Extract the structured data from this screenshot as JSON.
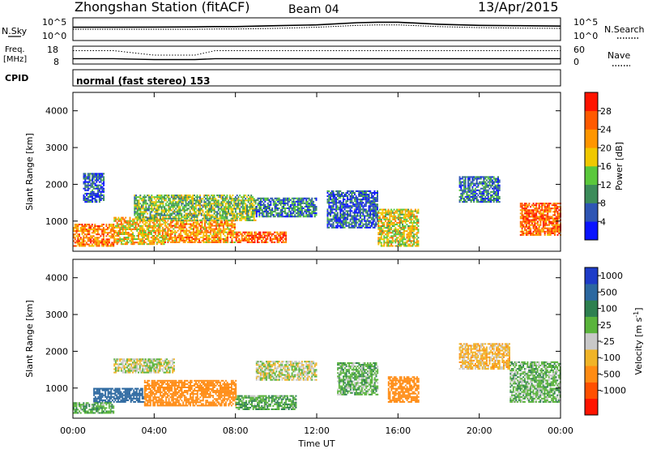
{
  "header": {
    "station": "Zhongshan Station (fitACF)",
    "beam": "Beam 04",
    "date": "13/Apr/2015"
  },
  "panels": {
    "nsky": {
      "left_label": "N.Sky",
      "right_label": "N.Search",
      "left_ticks": [
        "10^5",
        "10^0"
      ],
      "right_ticks": [
        "10^5",
        "10^0"
      ]
    },
    "freq": {
      "left_label_1": "Freq.",
      "left_label_2": "[MHz]",
      "right_label": "Nave",
      "left_ticks": [
        "18",
        "8"
      ],
      "right_ticks": [
        "60",
        "0"
      ]
    },
    "cpid": {
      "label": "CPID",
      "text": "normal (fast stereo) 153"
    }
  },
  "x_axis": {
    "label": "Time UT",
    "ticks": [
      "00:00",
      "04:00",
      "08:00",
      "12:00",
      "16:00",
      "20:00",
      "00:00"
    ]
  },
  "y_axis": {
    "label": "Slant Range [km]",
    "ticks": [
      "1000",
      "2000",
      "3000",
      "4000"
    ]
  },
  "power_scale": {
    "label": "Power [dB]",
    "ticks": [
      "4",
      "8",
      "12",
      "16",
      "20",
      "24",
      "28"
    ],
    "colors": [
      "#0a14ff",
      "#2e55b4",
      "#3c8c5a",
      "#5ac83c",
      "#f0c800",
      "#ff9600",
      "#ff5a00",
      "#ff1400"
    ]
  },
  "velocity_scale": {
    "label_prefix": "Velocity [m s",
    "label_sup": "-1",
    "label_suffix": "]",
    "ticks": [
      "1000",
      "500",
      "100",
      "25",
      "-25",
      "-100",
      "-500",
      "-1000"
    ],
    "colors": [
      "#1e3cc8",
      "#2c68a0",
      "#2e8050",
      "#5ab43c",
      "#c8c8c8",
      "#f0b428",
      "#ff8c14",
      "#ff5000",
      "#ff1400"
    ]
  },
  "chart_data": [
    {
      "type": "line",
      "panel": "N.Sky / N.Search",
      "x": [
        "00:00",
        "02:00",
        "04:00",
        "06:00",
        "07:00",
        "08:00",
        "10:00",
        "12:00",
        "14:00",
        "15:00",
        "16:00",
        "18:00",
        "20:00",
        "22:00",
        "24:00"
      ],
      "series": [
        {
          "name": "N.Sky",
          "values": [
            1000,
            1000,
            1100,
            1200,
            1500,
            1500,
            2500,
            4000,
            15000,
            20000,
            20000,
            6000,
            3000,
            2500,
            2000
          ]
        },
        {
          "name": "N.Search",
          "values": [
            300,
            300,
            300,
            300,
            350,
            350,
            500,
            1000,
            3000,
            4000,
            4000,
            1500,
            800,
            600,
            500
          ]
        }
      ]
    },
    {
      "type": "line",
      "panel": "Freq. / Nave",
      "x": [
        "00:00",
        "02:00",
        "04:00",
        "06:00",
        "07:00",
        "08:00",
        "12:00",
        "16:00",
        "20:00",
        "24:00"
      ],
      "series": [
        {
          "name": "Freq.",
          "values": [
            11,
            11,
            10.5,
            10.5,
            11,
            11,
            11,
            11,
            11,
            11
          ]
        },
        {
          "name": "Nave",
          "values": [
            45,
            45,
            30,
            30,
            45,
            45,
            45,
            45,
            45,
            45
          ]
        }
      ]
    },
    {
      "type": "heatmap",
      "panel": "Power",
      "x_range_hours": [
        0,
        24
      ],
      "y_range_km": [
        180,
        4500
      ],
      "regions": [
        {
          "t": [
            0.0,
            2.0
          ],
          "r": [
            300,
            900
          ],
          "value": 24
        },
        {
          "t": [
            2.0,
            4.5
          ],
          "r": [
            350,
            1100
          ],
          "value": 20
        },
        {
          "t": [
            4.5,
            8.0
          ],
          "r": [
            400,
            1000
          ],
          "value": 22
        },
        {
          "t": [
            8.0,
            10.5
          ],
          "r": [
            400,
            700
          ],
          "value": 26
        },
        {
          "t": [
            3.0,
            9.0
          ],
          "r": [
            1000,
            1700
          ],
          "value": 14
        },
        {
          "t": [
            9.0,
            12.0
          ],
          "r": [
            1100,
            1600
          ],
          "value": 8
        },
        {
          "t": [
            12.5,
            15.0
          ],
          "r": [
            800,
            1800
          ],
          "value": 6
        },
        {
          "t": [
            15.0,
            17.0
          ],
          "r": [
            300,
            1300
          ],
          "value": 18
        },
        {
          "t": [
            19.0,
            21.0
          ],
          "r": [
            1500,
            2200
          ],
          "value": 8
        },
        {
          "t": [
            22.0,
            24.0
          ],
          "r": [
            600,
            1500
          ],
          "value": 26
        },
        {
          "t": [
            0.5,
            1.5
          ],
          "r": [
            1500,
            2300
          ],
          "value": 6
        }
      ]
    },
    {
      "type": "heatmap",
      "panel": "Velocity",
      "x_range_hours": [
        0,
        24
      ],
      "y_range_km": [
        180,
        4500
      ],
      "regions": [
        {
          "t": [
            1.0,
            3.5
          ],
          "r": [
            600,
            1000
          ],
          "value": 600
        },
        {
          "t": [
            0.0,
            2.0
          ],
          "r": [
            300,
            600
          ],
          "value": 80
        },
        {
          "t": [
            2.0,
            5.0
          ],
          "r": [
            1400,
            1800
          ],
          "value": 0
        },
        {
          "t": [
            3.5,
            8.0
          ],
          "r": [
            500,
            1200
          ],
          "value": -200
        },
        {
          "t": [
            8.0,
            11.0
          ],
          "r": [
            400,
            800
          ],
          "value": 80
        },
        {
          "t": [
            9.0,
            12.0
          ],
          "r": [
            1200,
            1700
          ],
          "value": 0
        },
        {
          "t": [
            13.0,
            15.0
          ],
          "r": [
            800,
            1700
          ],
          "value": 60
        },
        {
          "t": [
            15.5,
            17.0
          ],
          "r": [
            600,
            1300
          ],
          "value": -300
        },
        {
          "t": [
            19.0,
            21.5
          ],
          "r": [
            1500,
            2200
          ],
          "value": -60
        },
        {
          "t": [
            21.5,
            24.0
          ],
          "r": [
            600,
            1700
          ],
          "value": 60
        }
      ]
    }
  ]
}
